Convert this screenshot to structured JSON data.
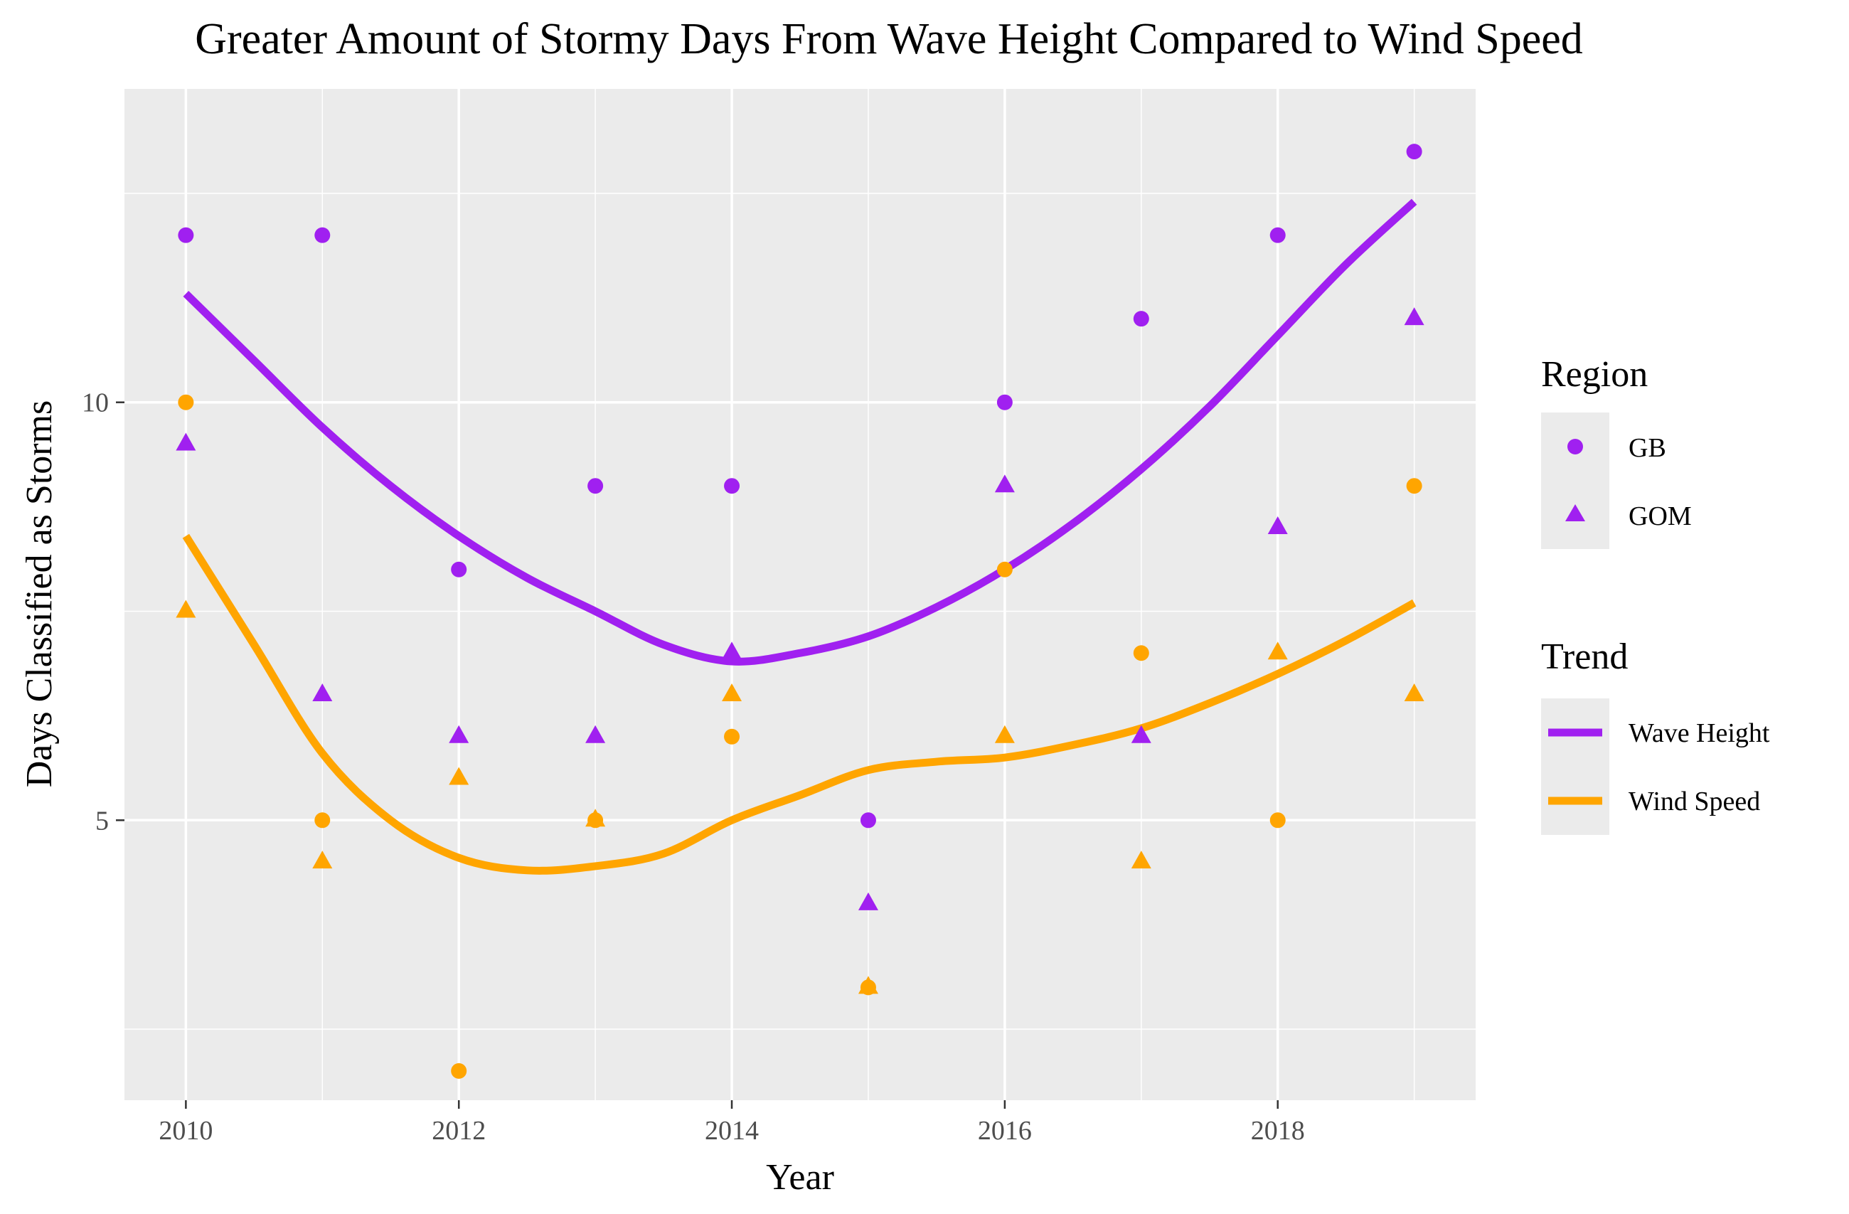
{
  "chart_data": {
    "type": "scatter",
    "title": "Greater Amount of Stormy Days From Wave Height Compared to Wind Speed",
    "xlabel": "Year",
    "ylabel": "Days Classified as Storms",
    "xlim": [
      2009.55,
      2019.45
    ],
    "ylim": [
      1.65,
      13.75
    ],
    "x_ticks": [
      2010,
      2012,
      2014,
      2016,
      2018
    ],
    "y_ticks": [
      5,
      10
    ],
    "grid": true,
    "background": "#ebebeb",
    "legend_position": "right",
    "colors": {
      "Wave Height": "#a020f0",
      "Wind Speed": "#ffa500"
    },
    "shapes": {
      "GB": "circle",
      "GOM": "triangle"
    },
    "legends": [
      {
        "title": "Region",
        "entries": [
          {
            "label": "GB",
            "shape": "circle"
          },
          {
            "label": "GOM",
            "shape": "triangle"
          }
        ]
      },
      {
        "title": "Trend",
        "entries": [
          {
            "label": "Wave Height",
            "color": "#a020f0"
          },
          {
            "label": "Wind Speed",
            "color": "#ffa500"
          }
        ]
      }
    ],
    "series": [
      {
        "metric": "Wave Height",
        "region": "GB",
        "x": [
          2010,
          2011,
          2012,
          2013,
          2014,
          2015,
          2016,
          2017,
          2018,
          2019
        ],
        "y": [
          12,
          12,
          8,
          9,
          9,
          5,
          10,
          11,
          12,
          13
        ]
      },
      {
        "metric": "Wave Height",
        "region": "GOM",
        "x": [
          2010,
          2011,
          2012,
          2013,
          2014,
          2015,
          2016,
          2017,
          2018,
          2019
        ],
        "y": [
          9.5,
          6.5,
          6,
          6,
          7,
          4,
          9,
          6,
          8.5,
          11
        ]
      },
      {
        "metric": "Wind Speed",
        "region": "GB",
        "x": [
          2010,
          2011,
          2012,
          2013,
          2014,
          2015,
          2016,
          2017,
          2018,
          2019
        ],
        "y": [
          10,
          5,
          2,
          5,
          6,
          3,
          8,
          7,
          5,
          9
        ]
      },
      {
        "metric": "Wind Speed",
        "region": "GOM",
        "x": [
          2010,
          2011,
          2012,
          2013,
          2014,
          2015,
          2016,
          2017,
          2018,
          2019
        ],
        "y": [
          7.5,
          4.5,
          5.5,
          5,
          6.5,
          3,
          6,
          4.5,
          7,
          6.5
        ]
      }
    ],
    "trend_lines": [
      {
        "name": "Wave Height",
        "x": [
          2010,
          2010.5,
          2011,
          2011.5,
          2012,
          2012.5,
          2013,
          2013.5,
          2014,
          2014.5,
          2015,
          2015.5,
          2016,
          2016.5,
          2017,
          2017.5,
          2018,
          2018.5,
          2019
        ],
        "y": [
          11.3,
          10.5,
          9.7,
          9.0,
          8.4,
          7.9,
          7.5,
          7.1,
          6.9,
          7.0,
          7.2,
          7.55,
          8.0,
          8.55,
          9.2,
          9.95,
          10.8,
          11.65,
          12.4
        ]
      },
      {
        "name": "Wind Speed",
        "x": [
          2010,
          2010.5,
          2011,
          2011.5,
          2012,
          2012.5,
          2013,
          2013.5,
          2014,
          2014.5,
          2015,
          2015.5,
          2016,
          2016.5,
          2017,
          2017.5,
          2018,
          2018.5,
          2019
        ],
        "y": [
          8.4,
          7.1,
          5.8,
          5.0,
          4.55,
          4.4,
          4.45,
          4.6,
          5.0,
          5.3,
          5.6,
          5.7,
          5.75,
          5.9,
          6.1,
          6.4,
          6.75,
          7.15,
          7.6
        ]
      }
    ]
  }
}
